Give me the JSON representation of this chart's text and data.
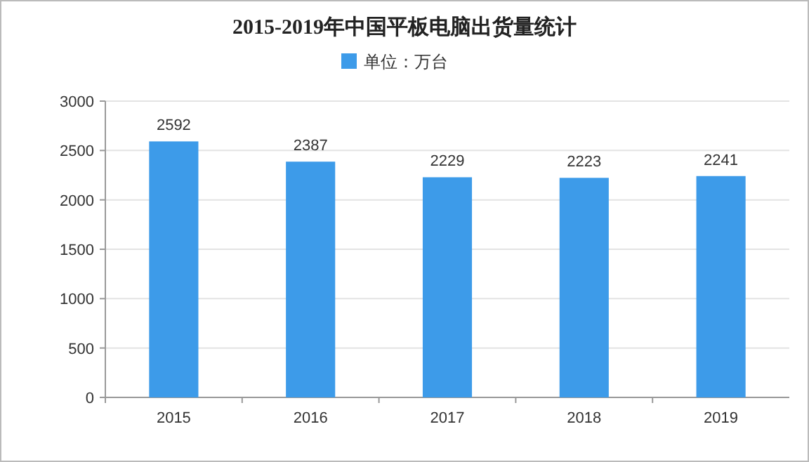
{
  "chart_data": {
    "type": "bar",
    "title": "2015-2019年中国平板电脑出货量统计",
    "categories": [
      "2015",
      "2016",
      "2017",
      "2018",
      "2019"
    ],
    "series": [
      {
        "name": "单位：万台",
        "color": "#3d9be9",
        "values": [
          2592,
          2387,
          2229,
          2223,
          2241
        ]
      }
    ],
    "ylim": [
      0,
      3000
    ],
    "yticks": [
      0,
      500,
      1000,
      1500,
      2000,
      2500,
      3000
    ],
    "grid": "y",
    "legend": "top",
    "data_labels": true
  }
}
